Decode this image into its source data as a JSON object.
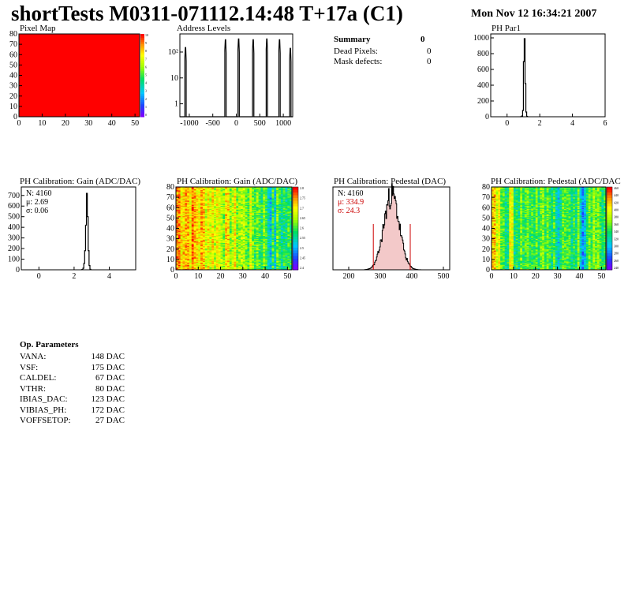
{
  "header": {
    "title": "shortTests M0311-071112.14:48 T+17a (C1)",
    "timestamp": "Mon Nov 12 16:34:21 2007"
  },
  "summary": {
    "title": "Summary",
    "total": "0",
    "rows": [
      {
        "label": "Dead Pixels:",
        "value": "0"
      },
      {
        "label": "Mask defects:",
        "value": "0"
      }
    ]
  },
  "op_params": {
    "title": "Op. Parameters",
    "rows": [
      {
        "name": "VANA:",
        "value": "148 DAC"
      },
      {
        "name": "VSF:",
        "value": "175 DAC"
      },
      {
        "name": "CALDEL:",
        "value": "67 DAC"
      },
      {
        "name": "VTHR:",
        "value": "80 DAC"
      },
      {
        "name": "IBIAS_DAC:",
        "value": "123 DAC"
      },
      {
        "name": "VIBIAS_PH:",
        "value": "172 DAC"
      },
      {
        "name": "VOFFSETOP:",
        "value": "27 DAC"
      }
    ]
  },
  "colors": {
    "pixel_map_fill": "#ff0000",
    "fit_line": "#cc0000",
    "stat_red": "#cc0000"
  },
  "chart_data": [
    {
      "id": "pixel_map",
      "type": "heatmap",
      "title": "Pixel Map",
      "xlim": [
        0,
        52
      ],
      "ylim": [
        0,
        80
      ],
      "x_ticks": [
        "0",
        "10",
        "20",
        "30",
        "40",
        "50"
      ],
      "y_ticks": [
        "0",
        "10",
        "20",
        "30",
        "40",
        "50",
        "60",
        "70",
        "80"
      ],
      "uniform_value": 10,
      "palette_labels": [
        "10",
        "9",
        "8",
        "7",
        "6",
        "5",
        "4",
        "3",
        "2",
        "1",
        "0"
      ]
    },
    {
      "id": "address_levels",
      "type": "bar",
      "title": "Address Levels",
      "yscale": "log",
      "xlim": [
        -1200,
        1200
      ],
      "x_ticks": [
        "-1000",
        "-500",
        "0",
        "500",
        "1000"
      ],
      "y_ticks": [
        "1",
        "10",
        "10²"
      ],
      "peaks": [
        {
          "center": -1080,
          "height": 150
        },
        {
          "center": -230,
          "height": 300
        },
        {
          "center": 50,
          "height": 320
        },
        {
          "center": 360,
          "height": 300
        },
        {
          "center": 650,
          "height": 320
        },
        {
          "center": 920,
          "height": 300
        },
        {
          "center": 1150,
          "height": 140
        }
      ]
    },
    {
      "id": "ph_par1",
      "type": "bar",
      "title": "PH Par1",
      "xlim": [
        -1,
        6
      ],
      "ylim": [
        0,
        1050
      ],
      "x_ticks": [
        "0",
        "2",
        "4",
        "6"
      ],
      "y_ticks": [
        "0",
        "200",
        "400",
        "600",
        "800",
        "1000"
      ],
      "bins": [
        [
          0.85,
          2
        ],
        [
          0.9,
          10
        ],
        [
          0.95,
          80
        ],
        [
          1.0,
          700
        ],
        [
          1.05,
          990
        ],
        [
          1.1,
          420
        ],
        [
          1.15,
          60
        ],
        [
          1.2,
          5
        ]
      ]
    },
    {
      "id": "ph_gain_hist",
      "type": "bar",
      "title": "PH Calibration: Gain (ADC/DAC)",
      "xlim": [
        -1,
        5.5
      ],
      "ylim": [
        0,
        780
      ],
      "x_ticks": [
        "0",
        "2",
        "4"
      ],
      "y_ticks": [
        "0",
        "100",
        "200",
        "300",
        "400",
        "500",
        "600",
        "700"
      ],
      "stats": [
        "N: 4160",
        "μ: 2.69",
        "σ: 0.06"
      ],
      "bins": [
        [
          2.45,
          3
        ],
        [
          2.5,
          15
        ],
        [
          2.55,
          60
        ],
        [
          2.6,
          180
        ],
        [
          2.65,
          420
        ],
        [
          2.7,
          720
        ],
        [
          2.75,
          500
        ],
        [
          2.8,
          180
        ],
        [
          2.85,
          40
        ],
        [
          2.9,
          5
        ]
      ]
    },
    {
      "id": "ph_gain_map",
      "type": "heatmap",
      "title": "PH Calibration: Gain (ADC/DAC)",
      "xlim": [
        0,
        52
      ],
      "ylim": [
        0,
        80
      ],
      "x_ticks": [
        "0",
        "10",
        "20",
        "30",
        "40",
        "50"
      ],
      "y_ticks": [
        "0",
        "10",
        "20",
        "30",
        "40",
        "50",
        "60",
        "70",
        "80"
      ],
      "palette_labels": [
        "2.8",
        "2.75",
        "2.7",
        "2.65",
        "2.6",
        "2.55",
        "2.5",
        "2.45",
        "2.4"
      ]
    },
    {
      "id": "ph_pedestal_hist",
      "type": "bar",
      "title": "PH Calibration: Pedestal (DAC)",
      "xlim": [
        150,
        520
      ],
      "ylim": [
        0,
        105
      ],
      "x_ticks": [
        "200",
        "300",
        "400",
        "500"
      ],
      "stats": [
        "N: 4160",
        "μ: 334.9",
        "σ: 24.3"
      ],
      "mean": 334.9,
      "sigma": 24.3,
      "peak": 95,
      "cut_lines": [
        278,
        395
      ]
    },
    {
      "id": "ph_pedestal_map",
      "type": "heatmap",
      "title": "PH Calibration: Pedestal (ADC/DAC)",
      "xlim": [
        0,
        52
      ],
      "ylim": [
        0,
        80
      ],
      "x_ticks": [
        "0",
        "10",
        "20",
        "30",
        "40",
        "50"
      ],
      "y_ticks": [
        "0",
        "10",
        "20",
        "30",
        "40",
        "50",
        "60",
        "70",
        "80"
      ],
      "palette_labels": [
        "460",
        "440",
        "420",
        "400",
        "380",
        "360",
        "340",
        "320",
        "300",
        "280",
        "260",
        "240"
      ]
    }
  ]
}
